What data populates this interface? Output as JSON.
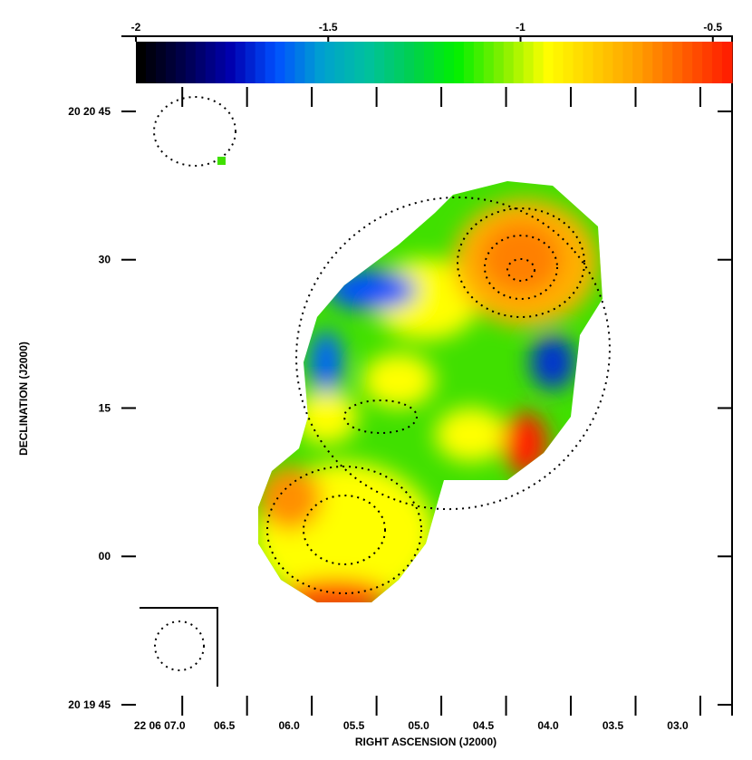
{
  "chart_data": {
    "type": "image",
    "x_label": "RIGHT ASCENSION (J2000)",
    "y_label": "DECLINATION (J2000)",
    "xlim": [
      7.47,
      2.755
    ],
    "xticks": [
      {
        "value": 7.0,
        "label": "22 06 07.0"
      },
      {
        "value": 6.5,
        "label": "06.5"
      },
      {
        "value": 6.0,
        "label": "06.0"
      },
      {
        "value": 5.5,
        "label": "05.5"
      },
      {
        "value": 5.0,
        "label": "05.0"
      },
      {
        "value": 4.5,
        "label": "04.5"
      },
      {
        "value": 4.0,
        "label": "04.0"
      },
      {
        "value": 3.5,
        "label": "03.5"
      },
      {
        "value": 3.0,
        "label": "03.0"
      }
    ],
    "ylim": [
      -16.1,
      52.6
    ],
    "yticks": [
      {
        "value": 45,
        "label": "20 20 45"
      },
      {
        "value": 30,
        "label": "30"
      },
      {
        "value": 15,
        "label": "15"
      },
      {
        "value": 0,
        "label": "00"
      },
      {
        "value": -15,
        "label": "20 19 45"
      }
    ],
    "clim": [
      -2.0,
      -0.45
    ],
    "cticks": [
      -2.0,
      -1.5,
      -1.0,
      -0.5
    ],
    "colormap": [
      "#000000",
      "#000050",
      "#0000b0",
      "#0050ff",
      "#00a0d0",
      "#00c0a0",
      "#00d050",
      "#00f000",
      "#80f000",
      "#ffff00",
      "#ffd000",
      "#ffa000",
      "#ff6000",
      "#ff2000"
    ]
  }
}
